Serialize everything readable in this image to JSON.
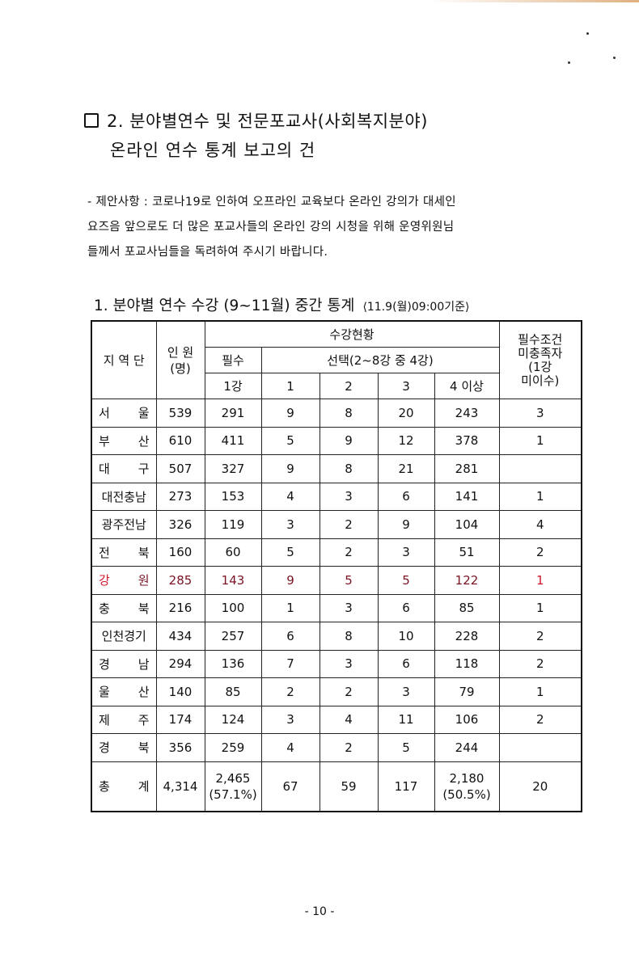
{
  "section": {
    "title_line1": "2. 분야별연수 및 전문포교사(사회복지분야)",
    "title_line2": "온라인 연수 통계 보고의 건"
  },
  "proposal": {
    "lines": [
      "- 제안사항 : 코로나19로 인하여 오프라인 교육보다  온라인 강의가 대세인",
      "요즈음 앞으로도 더 많은 포교사들의 온라인 강의 시청을 위해  운영위원님",
      "들께서 포교사님들을 독려하여 주시기 바랍니다."
    ]
  },
  "table": {
    "heading": "1. 분야별 연수 수강 (9~11월) 중간 통계",
    "basis": "⟨11.9(월)09:00기준⟩",
    "headers": {
      "region": "지 역 단",
      "count": "인 원\n(명)",
      "status": "수강현황",
      "required": "필수",
      "elective": "선택(2~8강 중 4강)",
      "req_1": "1강",
      "el_1": "1",
      "el_2": "2",
      "el_3": "3",
      "el_4": "4 이상",
      "unmet": "필수조건\n미충족자\n(1강\n미이수)"
    },
    "highlight_color": "#7a1424",
    "rows": [
      {
        "region": [
          "서",
          "울"
        ],
        "count": "539",
        "req": "291",
        "e1": "9",
        "e2": "8",
        "e3": "20",
        "e4": "243",
        "unmet": "3"
      },
      {
        "region": [
          "부",
          "산"
        ],
        "count": "610",
        "req": "411",
        "e1": "5",
        "e2": "9",
        "e3": "12",
        "e4": "378",
        "unmet": "1"
      },
      {
        "region": [
          "대",
          "구"
        ],
        "count": "507",
        "req": "327",
        "e1": "9",
        "e2": "8",
        "e3": "21",
        "e4": "281",
        "unmet": ""
      },
      {
        "region": [
          "대전충남"
        ],
        "count": "273",
        "req": "153",
        "e1": "4",
        "e2": "3",
        "e3": "6",
        "e4": "141",
        "unmet": "1"
      },
      {
        "region": [
          "광주전남"
        ],
        "count": "326",
        "req": "119",
        "e1": "3",
        "e2": "2",
        "e3": "9",
        "e4": "104",
        "unmet": "4"
      },
      {
        "region": [
          "전",
          "북"
        ],
        "count": "160",
        "req": "60",
        "e1": "5",
        "e2": "2",
        "e3": "3",
        "e4": "51",
        "unmet": "2"
      },
      {
        "region": [
          "강",
          "원"
        ],
        "count": "285",
        "req": "143",
        "e1": "9",
        "e2": "5",
        "e3": "5",
        "e4": "122",
        "unmet": "1",
        "highlight": true
      },
      {
        "region": [
          "충",
          "북"
        ],
        "count": "216",
        "req": "100",
        "e1": "1",
        "e2": "3",
        "e3": "6",
        "e4": "85",
        "unmet": "1"
      },
      {
        "region": [
          "인천경기"
        ],
        "count": "434",
        "req": "257",
        "e1": "6",
        "e2": "8",
        "e3": "10",
        "e4": "228",
        "unmet": "2"
      },
      {
        "region": [
          "경",
          "남"
        ],
        "count": "294",
        "req": "136",
        "e1": "7",
        "e2": "3",
        "e3": "6",
        "e4": "118",
        "unmet": "2"
      },
      {
        "region": [
          "울",
          "산"
        ],
        "count": "140",
        "req": "85",
        "e1": "2",
        "e2": "2",
        "e3": "3",
        "e4": "79",
        "unmet": "1"
      },
      {
        "region": [
          "제",
          "주"
        ],
        "count": "174",
        "req": "124",
        "e1": "3",
        "e2": "4",
        "e3": "11",
        "e4": "106",
        "unmet": "2"
      },
      {
        "region": [
          "경",
          "북"
        ],
        "count": "356",
        "req": "259",
        "e1": "4",
        "e2": "2",
        "e3": "5",
        "e4": "244",
        "unmet": ""
      }
    ],
    "total": {
      "region": [
        "총",
        "계"
      ],
      "count": "4,314",
      "req": "2,465",
      "req_pct": "(57.1%)",
      "e1": "67",
      "e2": "59",
      "e3": "117",
      "e4": "2,180",
      "e4_pct": "(50.5%)",
      "unmet": "20"
    }
  },
  "footer": {
    "page": "- 10 -"
  }
}
